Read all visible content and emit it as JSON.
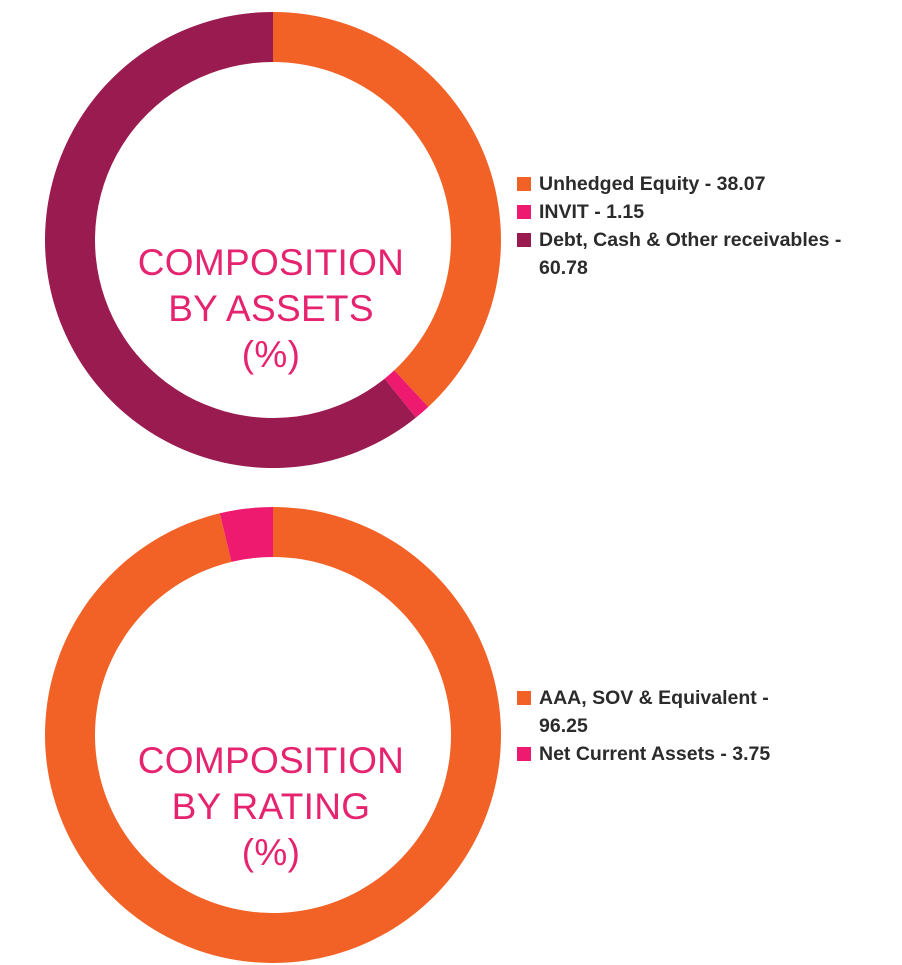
{
  "chart_data": [
    {
      "type": "pie",
      "title": "",
      "center_label": [
        "COMPOSITION",
        "BY ASSETS",
        "(%)"
      ],
      "start_angle_deg": 0,
      "direction": "clockwise",
      "slices": [
        {
          "name": "Unhedged Equity",
          "value": 38.07,
          "legend": "Unhedged Equity - 38.07",
          "color": "#f26227"
        },
        {
          "name": "INVIT",
          "value": 1.15,
          "legend": "INVIT - 1.15",
          "color": "#ee1a6f"
        },
        {
          "name": "Debt, Cash & Other receivables",
          "value": 60.78,
          "legend": "Debt, Cash & Other receivables - 60.78",
          "color": "#9a1b4f"
        }
      ],
      "legend_placement": "right"
    },
    {
      "type": "pie",
      "title": "",
      "center_label": [
        "COMPOSITION",
        "BY RATING",
        "(%)"
      ],
      "start_angle_deg": 0,
      "direction": "clockwise",
      "slices": [
        {
          "name": "AAA, SOV & Equivalent",
          "value": 96.25,
          "legend": "AAA, SOV & Equivalent - 96.25",
          "color": "#f26227"
        },
        {
          "name": "Net Current Assets",
          "value": 3.75,
          "legend": "Net Current Assets - 3.75",
          "color": "#ee1a6f"
        }
      ],
      "legend_placement": "right"
    }
  ]
}
